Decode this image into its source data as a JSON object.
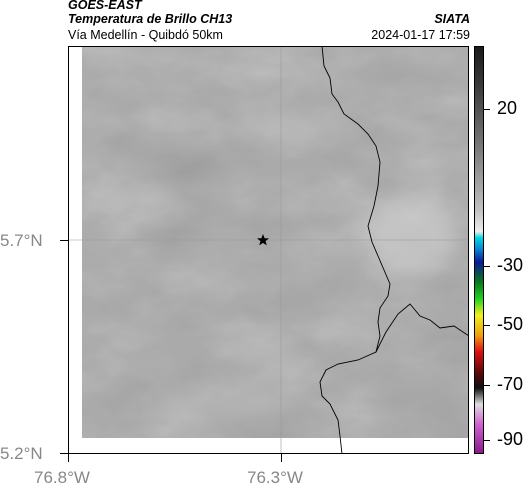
{
  "header": {
    "satellite": "GOES-EAST",
    "product": "Temperatura de Brillo CH13",
    "route": "Vía Medellín - Quibdó 50km",
    "org": "SIATA",
    "datetime": "2024-01-17 17:59"
  },
  "axes": {
    "lat_labels": [
      "5.7°N",
      "5.2°N"
    ],
    "lon_labels": [
      "76.8°W",
      "76.3°W"
    ]
  },
  "colorbar": {
    "tick_labels": [
      "20",
      "-30",
      "-50",
      "-70",
      "-90"
    ],
    "ticks": [
      {
        "label": "20",
        "frac": 0.155
      },
      {
        "label": "-30",
        "frac": 0.54
      },
      {
        "label": "-50",
        "frac": 0.685
      },
      {
        "label": "-70",
        "frac": 0.83
      },
      {
        "label": "-90",
        "frac": 0.965
      }
    ],
    "stops": [
      {
        "frac": 0.0,
        "color": "#1a1a1a"
      },
      {
        "frac": 0.1,
        "color": "#3c3c3c"
      },
      {
        "frac": 0.25,
        "color": "#7a7a7a"
      },
      {
        "frac": 0.4,
        "color": "#c0c0c0"
      },
      {
        "frac": 0.455,
        "color": "#ececec"
      },
      {
        "frac": 0.47,
        "color": "#00d8e0"
      },
      {
        "frac": 0.5,
        "color": "#0b7fd0"
      },
      {
        "frac": 0.53,
        "color": "#0a1a9a"
      },
      {
        "frac": 0.58,
        "color": "#0b7a1a"
      },
      {
        "frac": 0.62,
        "color": "#22d022"
      },
      {
        "frac": 0.66,
        "color": "#f0f020"
      },
      {
        "frac": 0.71,
        "color": "#f0a010"
      },
      {
        "frac": 0.75,
        "color": "#e01010"
      },
      {
        "frac": 0.8,
        "color": "#600808"
      },
      {
        "frac": 0.84,
        "color": "#101010"
      },
      {
        "frac": 0.88,
        "color": "#dddddd"
      },
      {
        "frac": 0.93,
        "color": "#d060d0"
      },
      {
        "frac": 1.0,
        "color": "#8a1a8a"
      }
    ]
  },
  "map": {
    "marker_icon": "star-icon",
    "background_color": "#6a6a6a",
    "border_color": "#000000"
  }
}
